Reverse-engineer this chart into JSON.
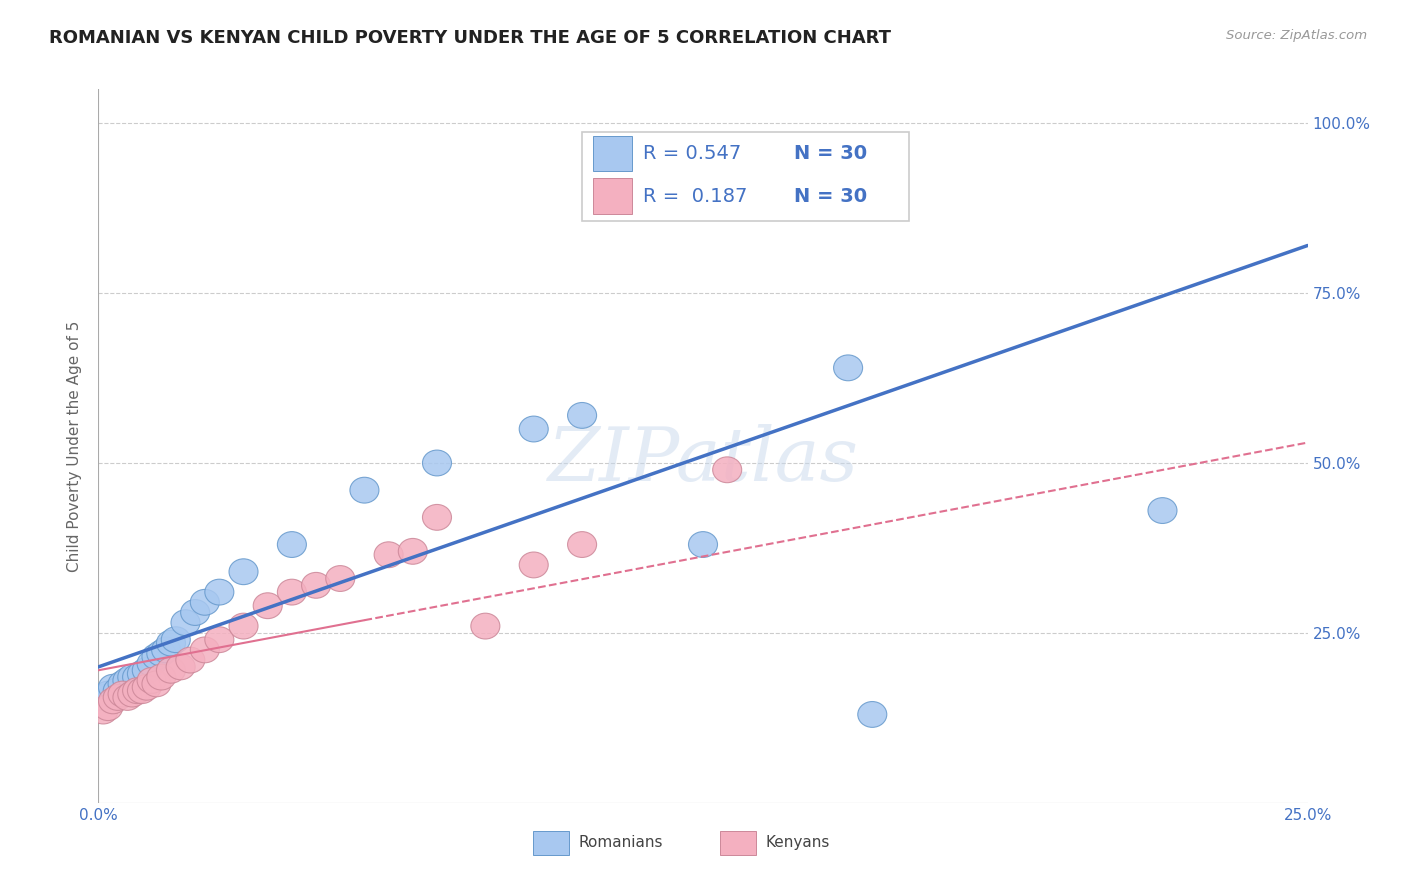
{
  "title": "ROMANIAN VS KENYAN CHILD POVERTY UNDER THE AGE OF 5 CORRELATION CHART",
  "source": "Source: ZipAtlas.com",
  "ylabel": "Child Poverty Under the Age of 5",
  "xlim": [
    0.0,
    0.25
  ],
  "ylim": [
    0.0,
    1.05
  ],
  "romanian_R": 0.547,
  "kenyan_R": 0.187,
  "N": 30,
  "romanian_color": "#a8c8f0",
  "romanian_edge": "#6699cc",
  "kenyan_color": "#f4b0c0",
  "kenyan_edge": "#cc8899",
  "romanian_line_color": "#4472c4",
  "kenyan_line_color": "#e07090",
  "background_color": "#ffffff",
  "grid_color": "#cccccc",
  "watermark": "ZIPatlas",
  "title_fontsize": 13,
  "axis_label_fontsize": 11,
  "tick_fontsize": 11,
  "legend_fontsize": 14,
  "rom_line_x0": 0.0,
  "rom_line_y0": 0.2,
  "rom_line_x1": 0.25,
  "rom_line_y1": 0.82,
  "ken_line_x0": 0.0,
  "ken_line_y0": 0.195,
  "ken_line_x1": 0.25,
  "ken_line_y1": 0.53,
  "romanians_x": [
    0.001,
    0.002,
    0.003,
    0.004,
    0.005,
    0.006,
    0.007,
    0.008,
    0.009,
    0.01,
    0.011,
    0.012,
    0.013,
    0.014,
    0.015,
    0.016,
    0.018,
    0.02,
    0.022,
    0.025,
    0.03,
    0.04,
    0.055,
    0.07,
    0.09,
    0.1,
    0.125,
    0.155,
    0.16,
    0.22
  ],
  "romanians_y": [
    0.155,
    0.16,
    0.17,
    0.165,
    0.175,
    0.18,
    0.185,
    0.185,
    0.19,
    0.195,
    0.205,
    0.215,
    0.22,
    0.225,
    0.235,
    0.24,
    0.265,
    0.28,
    0.295,
    0.31,
    0.34,
    0.38,
    0.46,
    0.5,
    0.55,
    0.57,
    0.38,
    0.64,
    0.13,
    0.43
  ],
  "kenyans_x": [
    0.001,
    0.002,
    0.003,
    0.004,
    0.005,
    0.006,
    0.007,
    0.008,
    0.009,
    0.01,
    0.011,
    0.012,
    0.013,
    0.015,
    0.017,
    0.019,
    0.022,
    0.025,
    0.03,
    0.035,
    0.04,
    0.045,
    0.05,
    0.06,
    0.065,
    0.07,
    0.08,
    0.09,
    0.1,
    0.13
  ],
  "kenyans_y": [
    0.135,
    0.14,
    0.15,
    0.155,
    0.16,
    0.155,
    0.16,
    0.165,
    0.165,
    0.17,
    0.18,
    0.175,
    0.185,
    0.195,
    0.2,
    0.21,
    0.225,
    0.24,
    0.26,
    0.29,
    0.31,
    0.32,
    0.33,
    0.365,
    0.37,
    0.42,
    0.26,
    0.35,
    0.38,
    0.49
  ]
}
